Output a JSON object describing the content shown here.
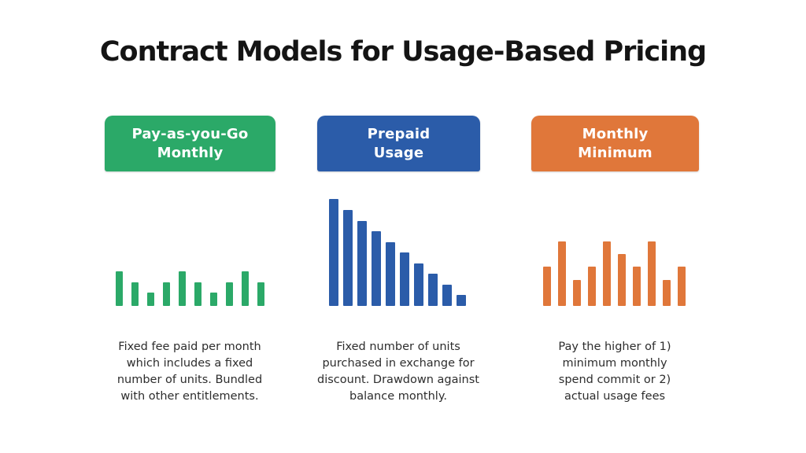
{
  "title": "Contract Models for Usage-Based Pricing",
  "colors": {
    "green": "#2BA968",
    "blue": "#2B5CA9",
    "orange": "#E0773A",
    "title_text": "#141414",
    "body_text": "#2D2D2D",
    "background": "#FFFFFF",
    "header_label_text": "#FFFFFF"
  },
  "columns": [
    {
      "id": "pay-as-you-go-monthly",
      "header_label": "Pay-as-you-Go\nMonthly",
      "header_color": "#2BA968",
      "description": "Fixed fee paid per month\nwhich includes a fixed\nnumber of units.  Bundled\nwith other entitlements."
    },
    {
      "id": "prepaid-usage",
      "header_label": "Prepaid\nUsage",
      "header_color": "#2B5CA9",
      "description": "Fixed number of units\npurchased in exchange for\ndiscount. Drawdown against\nbalance monthly."
    },
    {
      "id": "monthly-minimum",
      "header_label": "Monthly\nMinimum",
      "header_color": "#E0773A",
      "description": "Pay the higher of 1)\nminimum monthly\nspend commit or 2)\nactual usage fees"
    }
  ],
  "chart_data": [
    {
      "type": "bar",
      "title": "Pay-as-you-Go Monthly usage illustration",
      "color": "#2BA968",
      "values": [
        44,
        30,
        17,
        30,
        44,
        30,
        17,
        30,
        44,
        30
      ],
      "ylim": [
        0,
        44
      ],
      "axes": "none",
      "grid": false,
      "note": "decorative mini bar chart, steady repeating monthly usage pattern; values are relative bar heights in px"
    },
    {
      "type": "bar",
      "title": "Prepaid Usage drawdown illustration",
      "color": "#2B5CA9",
      "values": [
        136,
        122,
        108,
        95,
        81,
        68,
        54,
        41,
        27,
        14
      ],
      "ylim": [
        0,
        136
      ],
      "axes": "none",
      "grid": false,
      "note": "decorative mini bar chart, linear descending drawdown of prepaid balance; values are relative bar heights in px"
    },
    {
      "type": "bar",
      "title": "Monthly Minimum usage illustration",
      "color": "#E0773A",
      "values": [
        50,
        82,
        33,
        50,
        82,
        66,
        50,
        82,
        33,
        50
      ],
      "ylim": [
        0,
        82
      ],
      "axes": "none",
      "grid": false,
      "note": "decorative mini bar chart, fluctuating usage around a minimum commit; values are relative bar heights in px"
    }
  ]
}
